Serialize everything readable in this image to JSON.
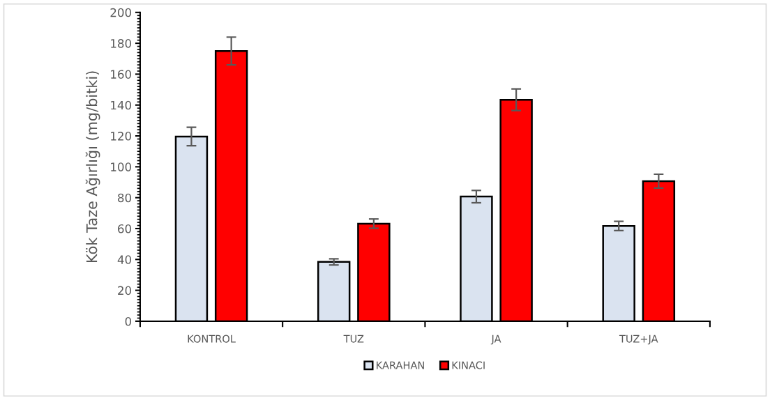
{
  "chart_data": {
    "type": "bar",
    "ylabel": "Kök Taze Ağırlığı (mg/bitki)",
    "categories": [
      "KONTROL",
      "TUZ",
      "JA",
      "TUZ+JA"
    ],
    "series": [
      {
        "name": "KARAHAN",
        "color": "#dae3f0",
        "values": [
          119.6,
          38.4,
          80.7,
          61.7
        ],
        "errors": [
          6,
          2,
          4,
          3
        ]
      },
      {
        "name": "KINACI",
        "color": "#ff0000",
        "values": [
          175,
          63.2,
          143.4,
          90.7
        ],
        "errors": [
          9,
          3,
          7,
          4.5
        ]
      }
    ],
    "ylim": [
      0,
      200
    ],
    "yticks": [
      0,
      20,
      40,
      60,
      80,
      100,
      120,
      140,
      160,
      180,
      200
    ],
    "grid": false,
    "legend": "bottom"
  }
}
